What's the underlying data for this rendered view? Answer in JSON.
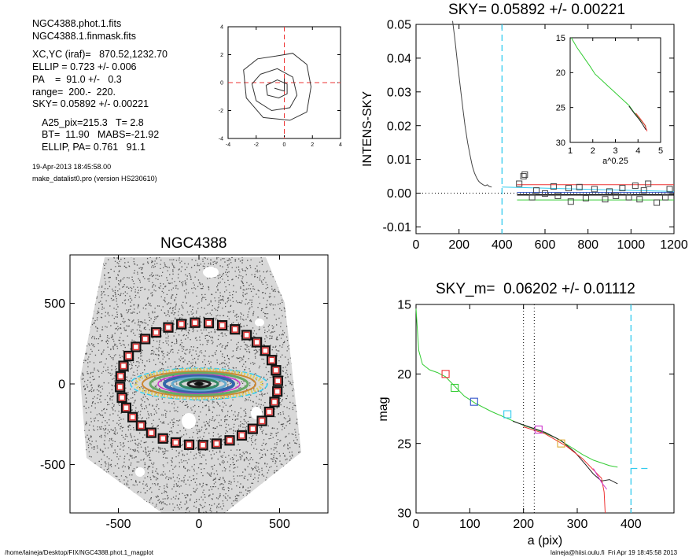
{
  "info": {
    "line1": "NGC4388.phot.1.fits",
    "line2": "NGC4388.1.finmask.fits",
    "line3": "XC,YC (iraf)=   870.52,1232.70",
    "line4": "ELLIP = 0.723 +/- 0.006",
    "line5": "PA    =  91.0 +/-   0.3",
    "line6": "range=  200.-  220.",
    "line7": "SKY= 0.05892 +/- 0.00221",
    "line8": "A25_pix=215.3   T= 2.8",
    "line9": "BT=  11.90   MABS=-21.92",
    "line10": "ELLIP, PA= 0.761   91.1",
    "date": "19-Apr-2013 18:45:58.00",
    "program": "make_datalist0.pro (version HS230610)"
  },
  "footer": {
    "path": "/home/laineja/Desktop/FIX/NGC4388.phot.1_magplot",
    "user": "laineja@hiisi.oulu.fi  Fri Apr 19 18:45:58 2013"
  },
  "colors": {
    "cyan": "#33ccee",
    "red": "#ee3333",
    "green": "#33cc33",
    "blue": "#3355cc",
    "magenta": "#cc33cc",
    "orange": "#ddaa33",
    "gray": "#555555"
  },
  "chart_data": [
    {
      "id": "contour",
      "type": "line",
      "title": "",
      "xlim": [
        -4,
        4
      ],
      "ylim": [
        -4,
        4
      ],
      "xticks": [
        -4,
        -2,
        0,
        2,
        4
      ],
      "yticks": [
        -4,
        -2,
        0,
        2,
        4
      ],
      "xtick_labels": [
        "-4",
        "-2",
        "0",
        "2",
        "4"
      ],
      "ytick_labels": [
        "-4",
        "-2",
        "0",
        "2",
        "4"
      ],
      "contours": [
        [
          [
            -0.6,
            1.9
          ],
          [
            0.6,
            2.1
          ],
          [
            1.6,
            1.3
          ],
          [
            1.9,
            -0.3
          ],
          [
            1.6,
            -2.1
          ],
          [
            0.4,
            -2.7
          ],
          [
            -1.5,
            -2.5
          ],
          [
            -2.7,
            -1.1
          ],
          [
            -2.9,
            0.9
          ],
          [
            -1.9,
            1.7
          ],
          [
            -0.6,
            1.9
          ]
        ],
        [
          [
            -1.7,
            0.6
          ],
          [
            -0.5,
            1.0
          ],
          [
            0.6,
            0.4
          ],
          [
            0.9,
            -0.9
          ],
          [
            0.4,
            -1.8
          ],
          [
            -0.9,
            -2.0
          ],
          [
            -2.0,
            -1.3
          ],
          [
            -2.3,
            -0.1
          ],
          [
            -1.7,
            0.6
          ]
        ],
        [
          [
            -1.3,
            -0.2
          ],
          [
            -0.5,
            0.2
          ],
          [
            0.2,
            -0.1
          ],
          [
            0.2,
            -0.8
          ],
          [
            -0.4,
            -1.1
          ],
          [
            -1.2,
            -0.9
          ],
          [
            -1.3,
            -0.2
          ]
        ],
        [
          [
            -0.7,
            -0.4
          ],
          [
            0.0,
            -0.6
          ],
          [
            0.0,
            0.3
          ]
        ]
      ],
      "crosshair": [
        0,
        0
      ]
    },
    {
      "id": "sky",
      "type": "line",
      "title": "SKY= 0.05892 +/- 0.00221",
      "xlabel": "",
      "ylabel": "INTENS-SKY",
      "xlim": [
        0,
        1200
      ],
      "ylim": [
        -0.012,
        0.05
      ],
      "xticks": [
        0,
        200,
        400,
        600,
        800,
        1000,
        1200
      ],
      "yticks": [
        -0.01,
        0.0,
        0.01,
        0.02,
        0.03,
        0.04,
        0.05
      ],
      "xtick_labels": [
        "0",
        "200",
        "400",
        "600",
        "800",
        "1000",
        "1200"
      ],
      "ytick_labels": [
        "-0.01",
        "0.00",
        "0.01",
        "0.02",
        "0.03",
        "0.04",
        "0.05"
      ],
      "profile": [
        [
          170,
          0.051
        ],
        [
          180,
          0.046
        ],
        [
          192,
          0.039
        ],
        [
          205,
          0.032
        ],
        [
          218,
          0.025
        ],
        [
          228,
          0.02
        ],
        [
          240,
          0.015
        ],
        [
          252,
          0.011
        ],
        [
          262,
          0.008
        ],
        [
          272,
          0.006
        ],
        [
          282,
          0.0045
        ],
        [
          292,
          0.0035
        ],
        [
          300,
          0.003
        ],
        [
          312,
          0.0025
        ],
        [
          322,
          0.0022
        ],
        [
          332,
          0.0025
        ],
        [
          340,
          0.002
        ],
        [
          352,
          0.0018
        ]
      ],
      "sky_dashed_x": 400,
      "sky_series": [
        {
          "color": "red",
          "x": [
            470,
            1200
          ],
          "y": [
            0.0025,
            0.0025
          ]
        },
        {
          "color": "green",
          "x": [
            470,
            1200
          ],
          "y": [
            -0.002,
            -0.002
          ]
        },
        {
          "color": "cyan",
          "x": [
            400,
            1200
          ],
          "y": [
            0.0018,
            0.0005
          ]
        },
        {
          "color": "blue",
          "x": [
            470,
            1200
          ],
          "y": [
            0.0002,
            0.0002
          ]
        },
        {
          "color": "black",
          "x": [
            470,
            1200
          ],
          "y": [
            -0.0005,
            -0.0005
          ]
        }
      ],
      "boxes": [
        [
          480,
          0.0028
        ],
        [
          500,
          0.005
        ],
        [
          506,
          0.0055
        ],
        [
          540,
          -0.0012
        ],
        [
          560,
          0.0008
        ],
        [
          600,
          -0.0001
        ],
        [
          640,
          0.002
        ],
        [
          660,
          -0.0008
        ],
        [
          710,
          0.0015
        ],
        [
          720,
          -0.0025
        ],
        [
          760,
          0.0018
        ],
        [
          790,
          -0.0015
        ],
        [
          830,
          0.0012
        ],
        [
          880,
          -0.0018
        ],
        [
          900,
          0.0005
        ],
        [
          930,
          -0.0008
        ],
        [
          960,
          0.0015
        ],
        [
          990,
          -0.0012
        ],
        [
          1020,
          0.0022
        ],
        [
          1040,
          -0.0018
        ],
        [
          1060,
          0.0008
        ],
        [
          1080,
          0.0028
        ],
        [
          1120,
          -0.0028
        ],
        [
          1160,
          -0.0012
        ],
        [
          1180,
          0.0012
        ]
      ]
    },
    {
      "id": "inset",
      "type": "line",
      "title": "",
      "xlabel": "a^0.25",
      "xlim": [
        1,
        5
      ],
      "ylim": [
        15,
        30
      ],
      "xticks": [
        1,
        2,
        3,
        4,
        5
      ],
      "yticks": [
        15,
        20,
        25,
        30
      ],
      "xtick_labels": [
        "1",
        "2",
        "3",
        "4",
        "5"
      ],
      "ytick_labels": [
        "15",
        "20",
        "25",
        "30"
      ],
      "green": [
        [
          1.05,
          15
        ],
        [
          1.3,
          16.4
        ],
        [
          1.6,
          17.8
        ],
        [
          1.9,
          19.2
        ],
        [
          2.1,
          20.2
        ],
        [
          2.4,
          21.1
        ],
        [
          2.7,
          22.0
        ],
        [
          3.0,
          22.9
        ],
        [
          3.3,
          23.8
        ],
        [
          3.6,
          24.7
        ],
        [
          3.85,
          25.8
        ],
        [
          4.05,
          26.5
        ],
        [
          4.2,
          27.1
        ],
        [
          4.35,
          27.7
        ]
      ],
      "black": [
        [
          3.6,
          24.8
        ],
        [
          3.85,
          25.9
        ],
        [
          4.05,
          26.7
        ],
        [
          4.2,
          27.4
        ],
        [
          4.35,
          28.2
        ]
      ],
      "red": [
        [
          3.9,
          25.8
        ],
        [
          4.1,
          26.6
        ],
        [
          4.3,
          27.5
        ],
        [
          4.4,
          28.4
        ]
      ]
    },
    {
      "id": "image",
      "type": "scatter",
      "title": "NGC4388",
      "xlim": [
        -800,
        800
      ],
      "ylim": [
        -800,
        800
      ],
      "xticks": [
        -500,
        0,
        500
      ],
      "yticks": [
        -500,
        0,
        500
      ],
      "xtick_labels": [
        "-500",
        "0",
        "500"
      ],
      "ytick_labels": [
        "-500",
        "0",
        "500"
      ],
      "sky_ellipse": {
        "a": 490,
        "b": 380
      },
      "galaxy_center": [
        0,
        0
      ]
    },
    {
      "id": "mag",
      "type": "line",
      "title": "SKY_m=  0.06202 +/- 0.01112",
      "xlabel": "a (pix)",
      "ylabel": "mag",
      "xlim": [
        0,
        480
      ],
      "ylim": [
        15,
        30
      ],
      "xticks": [
        0,
        100,
        200,
        300,
        400
      ],
      "yticks": [
        15,
        20,
        25,
        30
      ],
      "xtick_labels": [
        "0",
        "100",
        "200",
        "300",
        "400"
      ],
      "ytick_labels": [
        "15",
        "20",
        "25",
        "30"
      ],
      "vlines_dotted": [
        200,
        220
      ],
      "vline_cyan": 400,
      "cyan_segment": {
        "x": [
          400,
          435
        ],
        "y": [
          26.8,
          26.8
        ]
      },
      "green": [
        [
          0,
          15.3
        ],
        [
          5,
          18.3
        ],
        [
          12,
          19.3
        ],
        [
          25,
          19.7
        ],
        [
          40,
          19.9
        ],
        [
          55,
          20.2
        ],
        [
          70,
          20.8
        ],
        [
          90,
          21.6
        ],
        [
          110,
          22.1
        ],
        [
          140,
          22.7
        ],
        [
          170,
          23.2
        ],
        [
          200,
          23.7
        ],
        [
          230,
          24.1
        ],
        [
          260,
          24.6
        ],
        [
          290,
          25.3
        ],
        [
          310,
          25.8
        ],
        [
          330,
          26.2
        ],
        [
          345,
          26.4
        ],
        [
          360,
          26.6
        ],
        [
          375,
          26.7
        ]
      ],
      "black": [
        [
          180,
          23.4
        ],
        [
          210,
          23.8
        ],
        [
          240,
          24.2
        ],
        [
          270,
          24.8
        ],
        [
          295,
          25.6
        ],
        [
          315,
          26.5
        ],
        [
          330,
          27.2
        ],
        [
          345,
          27.7
        ],
        [
          360,
          27.6
        ],
        [
          375,
          27.9
        ]
      ],
      "red": [
        [
          200,
          23.8
        ],
        [
          240,
          24.3
        ],
        [
          280,
          25.2
        ],
        [
          310,
          26.1
        ],
        [
          330,
          26.9
        ],
        [
          345,
          27.5
        ],
        [
          350,
          28.5
        ],
        [
          352,
          30
        ]
      ],
      "magenta_seg": [
        [
          330,
          26.8
        ],
        [
          345,
          27.8
        ],
        [
          355,
          28.3
        ]
      ],
      "boxes": [
        {
          "x": 55,
          "y": 20.0,
          "color": "red"
        },
        {
          "x": 72,
          "y": 21.0,
          "color": "green"
        },
        {
          "x": 108,
          "y": 22.0,
          "color": "blue"
        },
        {
          "x": 170,
          "y": 22.9,
          "color": "cyan"
        },
        {
          "x": 228,
          "y": 24.0,
          "color": "magenta"
        },
        {
          "x": 270,
          "y": 25.0,
          "color": "orange"
        }
      ]
    }
  ]
}
